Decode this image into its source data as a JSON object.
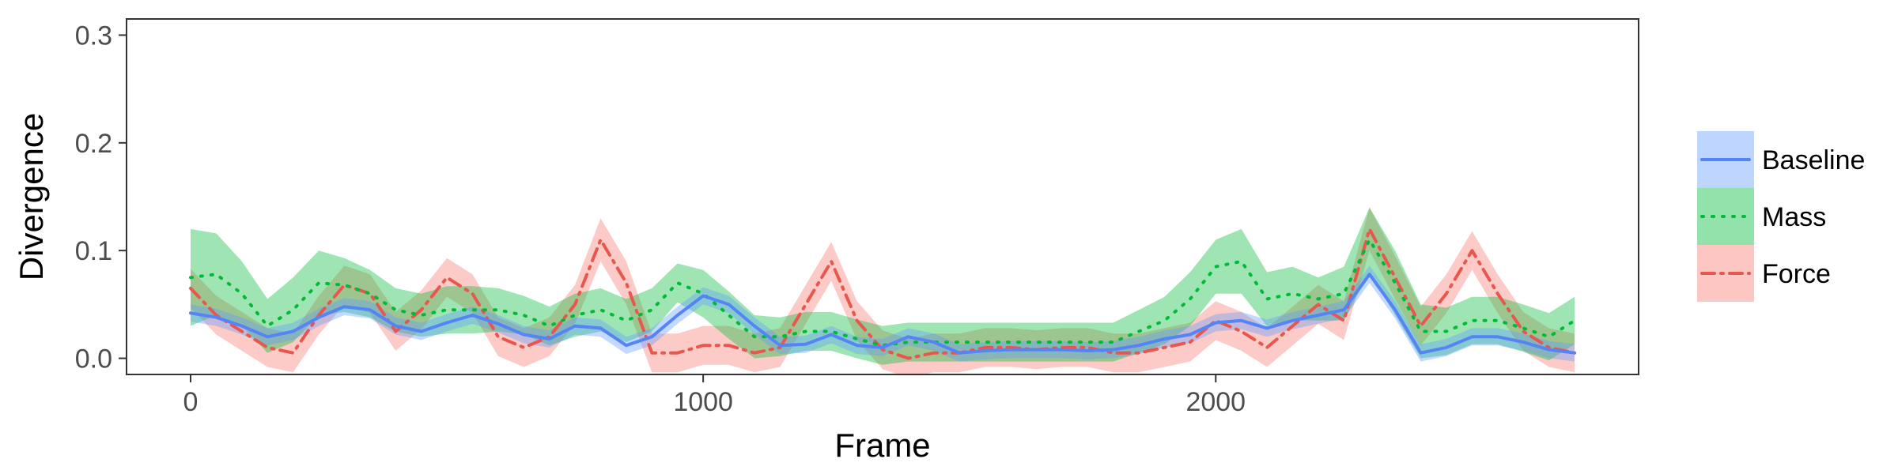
{
  "chart_data": {
    "type": "line",
    "title": "",
    "xlabel": "Frame",
    "ylabel": "Divergence",
    "xlim": [
      -125,
      2825
    ],
    "ylim": [
      -0.015,
      0.315
    ],
    "xticks": [
      0,
      1000,
      2000
    ],
    "xtick_labels": [
      "0",
      "1000",
      "2000"
    ],
    "yticks": [
      0.0,
      0.1,
      0.2,
      0.3
    ],
    "ytick_labels": [
      "0.0",
      "0.1",
      "0.2",
      "0.3"
    ],
    "grid": false,
    "legend_position": "right",
    "x": [
      0,
      50,
      100,
      150,
      200,
      250,
      300,
      350,
      400,
      450,
      500,
      550,
      600,
      650,
      700,
      750,
      800,
      850,
      900,
      950,
      1000,
      1050,
      1100,
      1150,
      1200,
      1250,
      1300,
      1350,
      1400,
      1450,
      1500,
      1550,
      1600,
      1650,
      1700,
      1750,
      1800,
      1850,
      1900,
      1950,
      2000,
      2050,
      2100,
      2150,
      2200,
      2250,
      2300,
      2350,
      2400,
      2450,
      2500,
      2550,
      2600,
      2650,
      2700
    ],
    "series": [
      {
        "name": "Baseline",
        "color": "#619CFF",
        "line_color": "#5585F5",
        "line_style": "solid",
        "values": [
          0.042,
          0.038,
          0.03,
          0.02,
          0.025,
          0.038,
          0.048,
          0.045,
          0.03,
          0.025,
          0.033,
          0.04,
          0.032,
          0.022,
          0.018,
          0.03,
          0.028,
          0.012,
          0.02,
          0.04,
          0.058,
          0.05,
          0.03,
          0.012,
          0.013,
          0.022,
          0.012,
          0.01,
          0.02,
          0.015,
          0.005,
          0.007,
          0.008,
          0.008,
          0.008,
          0.007,
          0.008,
          0.012,
          0.018,
          0.022,
          0.033,
          0.035,
          0.028,
          0.035,
          0.04,
          0.045,
          0.078,
          0.045,
          0.005,
          0.01,
          0.02,
          0.02,
          0.015,
          0.008,
          0.005
        ],
        "band": [
          0.008,
          0.008,
          0.008,
          0.008,
          0.008,
          0.008,
          0.008,
          0.008,
          0.008,
          0.008,
          0.008,
          0.008,
          0.008,
          0.008,
          0.008,
          0.008,
          0.008,
          0.008,
          0.008,
          0.008,
          0.008,
          0.008,
          0.008,
          0.008,
          0.008,
          0.008,
          0.008,
          0.008,
          0.008,
          0.008,
          0.008,
          0.008,
          0.008,
          0.008,
          0.008,
          0.008,
          0.008,
          0.008,
          0.008,
          0.008,
          0.008,
          0.008,
          0.008,
          0.008,
          0.008,
          0.008,
          0.008,
          0.008,
          0.008,
          0.008,
          0.008,
          0.008,
          0.008,
          0.008,
          0.008
        ]
      },
      {
        "name": "Mass",
        "color": "#00BA38",
        "line_color": "#00BA38",
        "line_style": "dotted",
        "values": [
          0.075,
          0.078,
          0.06,
          0.03,
          0.045,
          0.07,
          0.068,
          0.06,
          0.045,
          0.04,
          0.045,
          0.045,
          0.045,
          0.04,
          0.03,
          0.04,
          0.045,
          0.035,
          0.045,
          0.07,
          0.06,
          0.04,
          0.02,
          0.02,
          0.025,
          0.025,
          0.018,
          0.012,
          0.015,
          0.015,
          0.015,
          0.015,
          0.015,
          0.015,
          0.015,
          0.015,
          0.015,
          0.025,
          0.035,
          0.055,
          0.085,
          0.09,
          0.055,
          0.06,
          0.055,
          0.06,
          0.11,
          0.07,
          0.025,
          0.025,
          0.035,
          0.035,
          0.028,
          0.02,
          0.035
        ],
        "band": [
          0.045,
          0.038,
          0.03,
          0.025,
          0.03,
          0.03,
          0.025,
          0.022,
          0.02,
          0.02,
          0.022,
          0.022,
          0.02,
          0.018,
          0.018,
          0.02,
          0.02,
          0.02,
          0.02,
          0.018,
          0.022,
          0.022,
          0.02,
          0.018,
          0.018,
          0.018,
          0.018,
          0.018,
          0.018,
          0.018,
          0.018,
          0.018,
          0.018,
          0.018,
          0.018,
          0.018,
          0.018,
          0.02,
          0.022,
          0.025,
          0.025,
          0.03,
          0.025,
          0.025,
          0.02,
          0.025,
          0.03,
          0.03,
          0.025,
          0.022,
          0.022,
          0.022,
          0.022,
          0.022,
          0.022
        ]
      },
      {
        "name": "Force",
        "color": "#F8766D",
        "line_color": "#E8574E",
        "line_style": "dashdot",
        "values": [
          0.065,
          0.04,
          0.025,
          0.01,
          0.005,
          0.04,
          0.068,
          0.06,
          0.025,
          0.045,
          0.075,
          0.06,
          0.02,
          0.01,
          0.02,
          0.05,
          0.11,
          0.07,
          0.005,
          0.005,
          0.012,
          0.012,
          0.005,
          0.01,
          0.05,
          0.09,
          0.035,
          0.008,
          0.0,
          0.005,
          0.005,
          0.01,
          0.01,
          0.008,
          0.01,
          0.01,
          0.005,
          0.005,
          0.01,
          0.015,
          0.035,
          0.025,
          0.01,
          0.03,
          0.05,
          0.035,
          0.12,
          0.075,
          0.03,
          0.06,
          0.1,
          0.06,
          0.025,
          0.01,
          0.005
        ],
        "band": [
          0.018,
          0.018,
          0.018,
          0.018,
          0.018,
          0.018,
          0.018,
          0.018,
          0.018,
          0.018,
          0.018,
          0.018,
          0.018,
          0.018,
          0.018,
          0.018,
          0.02,
          0.02,
          0.018,
          0.018,
          0.018,
          0.018,
          0.018,
          0.018,
          0.018,
          0.018,
          0.018,
          0.018,
          0.018,
          0.018,
          0.018,
          0.018,
          0.018,
          0.018,
          0.018,
          0.018,
          0.018,
          0.018,
          0.018,
          0.018,
          0.018,
          0.018,
          0.018,
          0.018,
          0.018,
          0.018,
          0.02,
          0.02,
          0.018,
          0.018,
          0.018,
          0.018,
          0.018,
          0.018,
          0.018
        ]
      }
    ]
  }
}
